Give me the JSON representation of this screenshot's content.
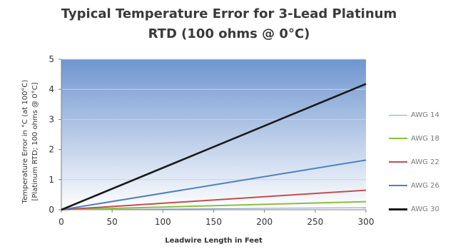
{
  "chart_data": {
    "type": "line",
    "title_line1": "Typical Temperature Error for 3-Lead Platinum",
    "title_line2": "RTD (100 ohms @ 0°C)",
    "xlabel": "Leadwire Length in Feet",
    "ylabel_line1": "Temperature Error in °C (at 100°C)",
    "ylabel_line2": "[Platinum RTD; 100 ohms @ 0°C]",
    "xlim": [
      0,
      300
    ],
    "ylim": [
      0,
      5
    ],
    "x_ticks": [
      0,
      50,
      100,
      150,
      200,
      250,
      300
    ],
    "y_ticks": [
      0,
      1,
      2,
      3,
      4,
      5
    ],
    "grid": true,
    "legend_position": "right",
    "x": [
      0,
      300
    ],
    "series": [
      {
        "name": "AWG 14",
        "values": [
          0,
          0.07
        ],
        "color": "#8fa3c8",
        "width": 1.2
      },
      {
        "name": "AWG 18",
        "values": [
          0,
          0.27
        ],
        "color": "#8bbf3f",
        "width": 2
      },
      {
        "name": "AWG 22",
        "values": [
          0,
          0.65
        ],
        "color": "#c0504d",
        "width": 2
      },
      {
        "name": "AWG 26",
        "values": [
          0,
          1.65
        ],
        "color": "#4f81bd",
        "width": 2
      },
      {
        "name": "AWG 30",
        "values": [
          0,
          4.18
        ],
        "color": "#1a1a1a",
        "width": 2.6
      }
    ]
  }
}
